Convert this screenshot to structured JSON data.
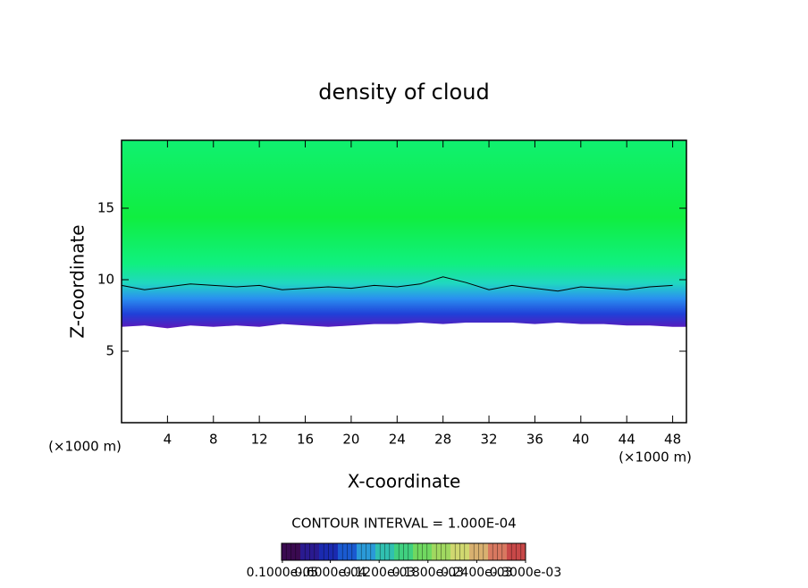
{
  "chart_data": {
    "type": "contour",
    "title": "density of cloud",
    "xlabel": "X-coordinate",
    "ylabel": "Z-coordinate",
    "x_unit": "(×1000 m)",
    "y_unit": "(×1000 m)",
    "footer": "CONTOUR INTERVAL = 1.000E-04",
    "xlim": [
      0,
      49.2
    ],
    "ylim": [
      0,
      19.75
    ],
    "xticks": [
      4,
      8,
      12,
      16,
      20,
      24,
      28,
      32,
      36,
      40,
      44,
      48
    ],
    "yticks": [
      5,
      10,
      15
    ],
    "x": [
      0,
      2,
      4,
      6,
      8,
      10,
      12,
      14,
      16,
      18,
      20,
      22,
      24,
      26,
      28,
      30,
      32,
      34,
      36,
      38,
      40,
      42,
      44,
      46,
      48
    ],
    "cloud_base": [
      6.7,
      6.8,
      6.6,
      6.8,
      6.7,
      6.8,
      6.7,
      6.9,
      6.8,
      6.7,
      6.8,
      6.9,
      6.9,
      7.0,
      6.9,
      7.0,
      7.0,
      7.0,
      6.9,
      7.0,
      6.9,
      6.9,
      6.8,
      6.8,
      6.7
    ],
    "contour": [
      9.6,
      9.3,
      9.5,
      9.7,
      9.6,
      9.5,
      9.6,
      9.3,
      9.4,
      9.5,
      9.4,
      9.6,
      9.5,
      9.7,
      10.2,
      9.8,
      9.3,
      9.6,
      9.4,
      9.2,
      9.5,
      9.4,
      9.3,
      9.5,
      9.6
    ],
    "colorbar": {
      "lim": [
        0,
        0.0003
      ],
      "colors": [
        "#3a0a50",
        "#2a1a90",
        "#1a2ab0",
        "#1a5ad0",
        "#2a9ad8",
        "#30c0b0",
        "#40d080",
        "#70d860",
        "#a0d860",
        "#d0d870",
        "#d8b070",
        "#d87860",
        "#c84848"
      ],
      "ticks": [
        {
          "value": 1e-06,
          "label": "0.1000e-05"
        },
        {
          "value": 6e-05,
          "label": "0.6000e-04"
        },
        {
          "value": 0.00012,
          "label": "0.1200e-03"
        },
        {
          "value": 0.00018,
          "label": "0.1800e-03"
        },
        {
          "value": 0.00024,
          "label": "0.2400e-03"
        },
        {
          "value": 0.0003,
          "label": "0.3000e-03"
        }
      ]
    }
  }
}
